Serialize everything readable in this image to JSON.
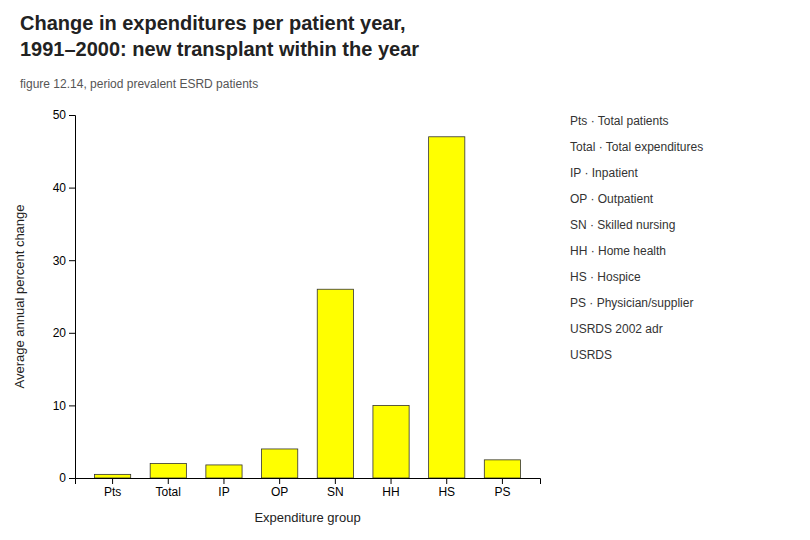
{
  "chart_data": {
    "type": "bar",
    "title": [
      "Change in expenditures per patient year,",
      "1991–2000: new transplant within the year"
    ],
    "subtitle": "figure 12.14, period prevalent ESRD patients",
    "xlabel": "Expenditure group",
    "ylabel": "Average annual percent change",
    "categories": [
      "Pts",
      "Total",
      "IP",
      "OP",
      "SN",
      "HH",
      "HS",
      "PS"
    ],
    "values": [
      0.5,
      2.0,
      1.8,
      4.0,
      26.0,
      10.0,
      47.0,
      2.5
    ],
    "color": "#FFFF00",
    "ylim": [
      0,
      50
    ],
    "yticks": [
      0,
      10,
      20,
      30,
      40,
      50
    ],
    "grid": false,
    "annotations": [
      "Pts · Total patients",
      "Total · Total expenditures",
      "IP · Inpatient",
      "OP · Outpatient",
      "SN · Skilled nursing",
      "HH · Home health",
      "HS · Hospice",
      "PS · Physician/supplier",
      "USRDS 2002 adr",
      "USRDS"
    ]
  }
}
